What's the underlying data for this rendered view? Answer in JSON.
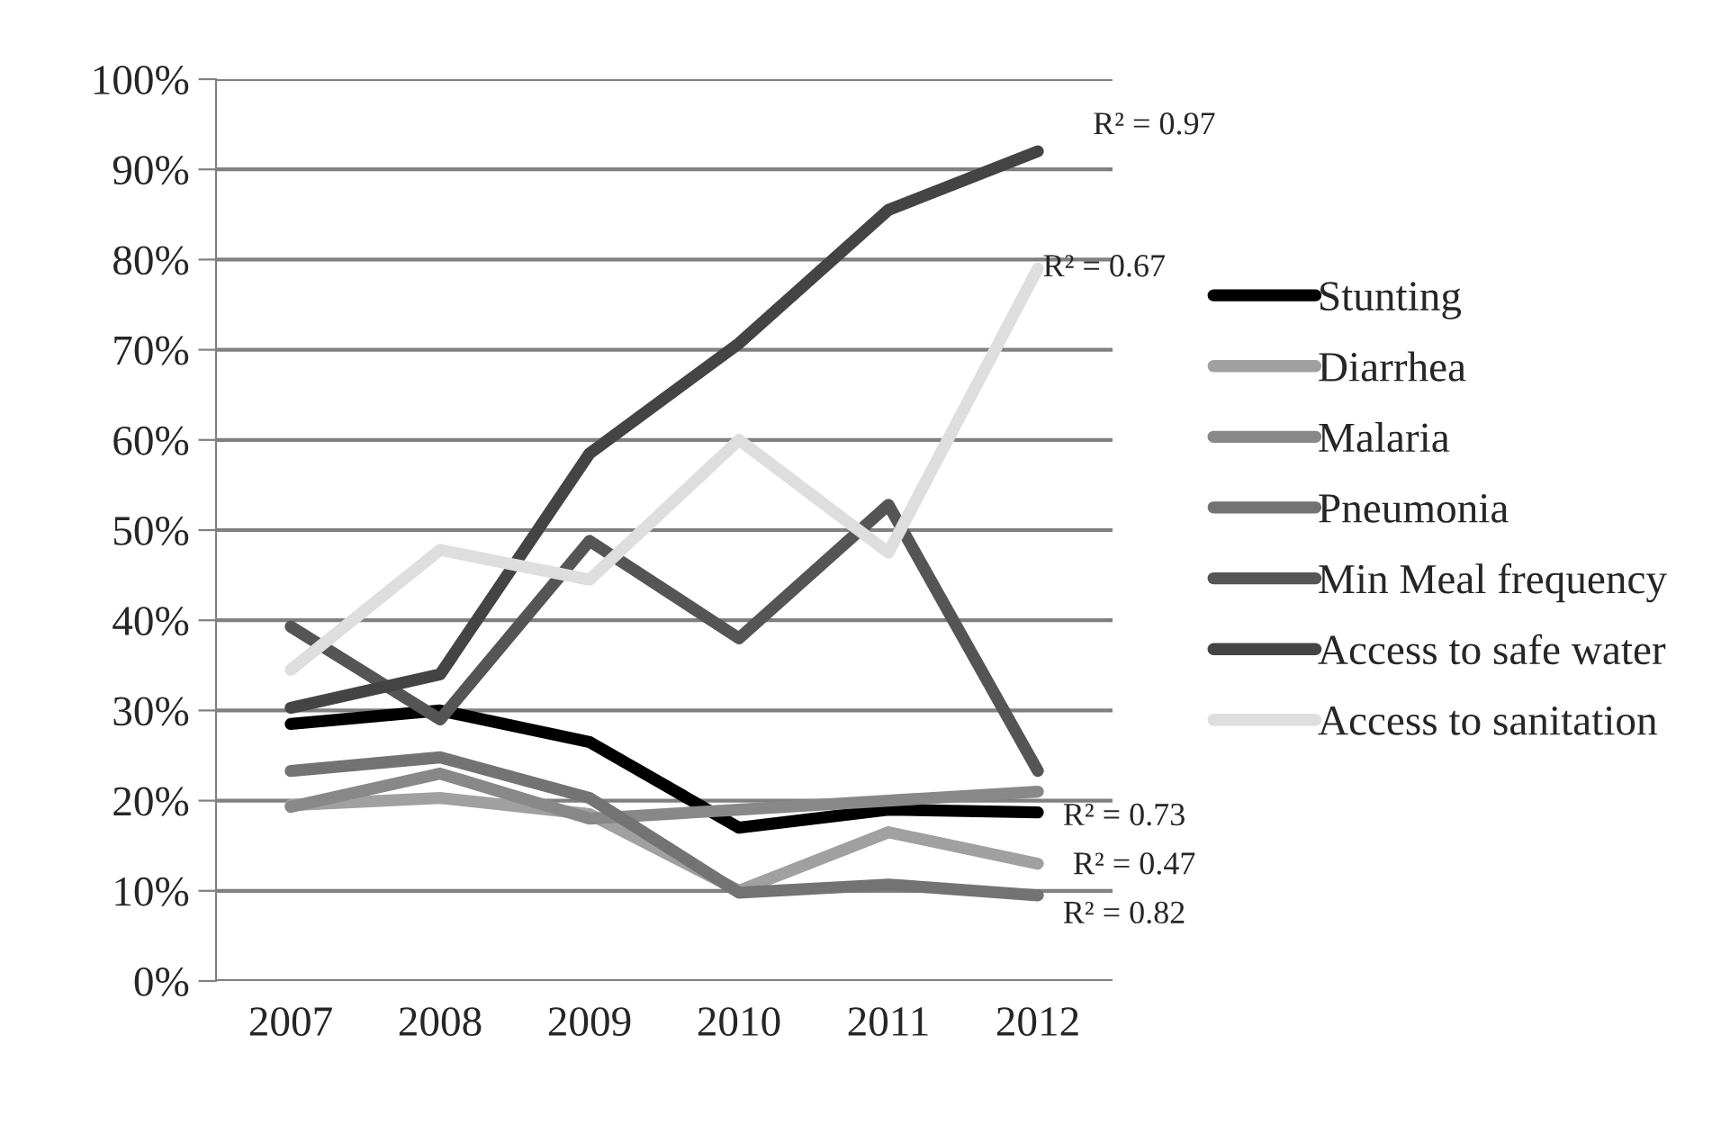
{
  "chart_data": {
    "type": "line",
    "categories": [
      "2007",
      "2008",
      "2009",
      "2010",
      "2011",
      "2012"
    ],
    "series": [
      {
        "name": "Stunting",
        "color": "#000000",
        "values": [
          28.5,
          30,
          26.5,
          17,
          19,
          18.7
        ]
      },
      {
        "name": "Diarrhea",
        "color": "#a0a0a0",
        "values": [
          19.5,
          20.3,
          18.5,
          10,
          16.5,
          13
        ]
      },
      {
        "name": "Malaria",
        "color": "#888888",
        "values": [
          19.3,
          23,
          18,
          19,
          20,
          21
        ]
      },
      {
        "name": "Pneumonia",
        "color": "#737373",
        "values": [
          23.3,
          24.8,
          20.3,
          9.8,
          10.7,
          9.5
        ]
      },
      {
        "name": "Min Meal frequency",
        "color": "#555555",
        "values": [
          39.3,
          29,
          48.8,
          38,
          52.8,
          23.3
        ]
      },
      {
        "name": "Access to safe water",
        "color": "#444444",
        "values": [
          30.3,
          34,
          58.5,
          70.7,
          85.5,
          92
        ]
      },
      {
        "name": "Access to sanitation",
        "color": "#dedede",
        "values": [
          34.5,
          47.8,
          44.5,
          60,
          47.5,
          79
        ]
      }
    ],
    "ylim": [
      0,
      100
    ],
    "yticks": [
      {
        "value": 0,
        "label": "0%"
      },
      {
        "value": 10,
        "label": "10%"
      },
      {
        "value": 20,
        "label": "20%"
      },
      {
        "value": 30,
        "label": "30%"
      },
      {
        "value": 40,
        "label": "40%"
      },
      {
        "value": 50,
        "label": "50%"
      },
      {
        "value": 60,
        "label": "60%"
      },
      {
        "value": 70,
        "label": "70%"
      },
      {
        "value": 80,
        "label": "80%"
      },
      {
        "value": 90,
        "label": "90%"
      },
      {
        "value": 100,
        "label": "100%"
      }
    ],
    "annotations": [
      {
        "text": "R² = 0.97",
        "x": "2012",
        "y": 92
      },
      {
        "text": "R² = 0.67",
        "x": "2012",
        "y": 79
      },
      {
        "text": "R² = 0.73",
        "x": "2012",
        "y": 18.7
      },
      {
        "text": "R² = 0.47",
        "x": "2012",
        "y": 13
      },
      {
        "text": "R² = 0.82",
        "x": "2012",
        "y": 9.5
      }
    ],
    "grid": "y",
    "legend": "right",
    "marker": "none",
    "line_style": "solid"
  }
}
